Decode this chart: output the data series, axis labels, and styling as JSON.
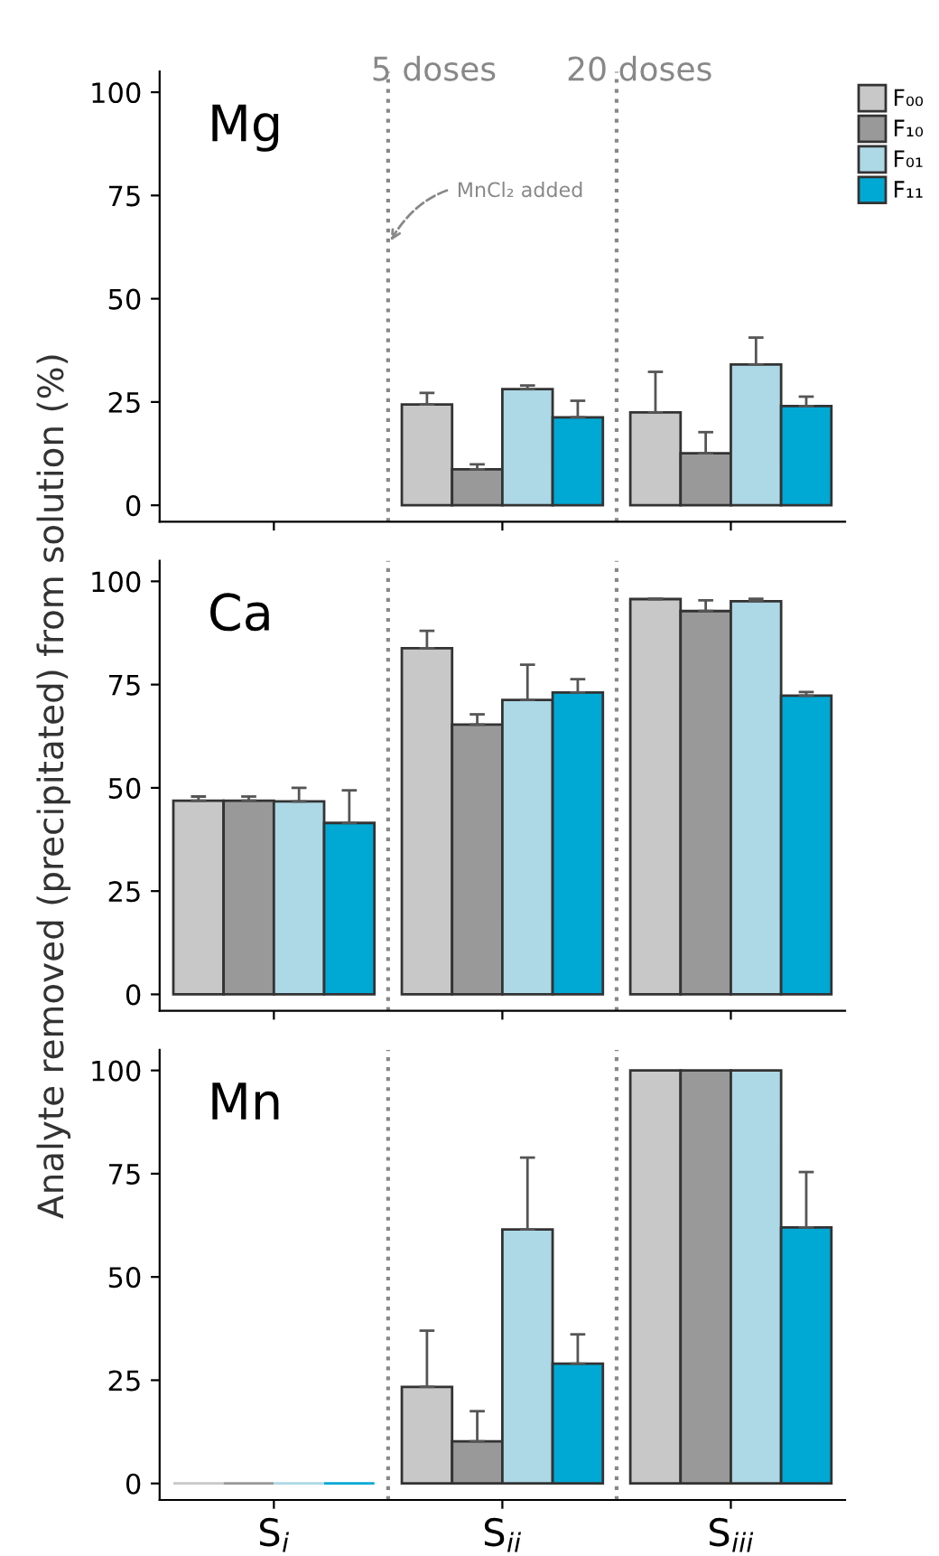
{
  "chart_data": [
    {
      "type": "bar",
      "title": "Mg",
      "categories": [
        null,
        null,
        null
      ],
      "ylim": [
        -4,
        105
      ],
      "yticks": [
        0,
        25,
        50,
        75,
        100
      ],
      "tick_labels": "y",
      "legend": "top right",
      "grid": false,
      "annotations": [
        "5 doses",
        "20 doses",
        "MnCl₂ added"
      ],
      "series": [
        {
          "name": "F₀₀",
          "color": "#c8c8c8",
          "values": [
            null,
            24.4,
            22.5
          ],
          "errors": [
            null,
            [
              24.4,
              27.2
            ],
            [
              22.5,
              32.3
            ]
          ]
        },
        {
          "name": "F₁₀",
          "color": "#999999",
          "values": [
            null,
            8.7,
            12.6
          ],
          "errors": [
            null,
            [
              8.7,
              9.9
            ],
            [
              12.6,
              17.7
            ]
          ]
        },
        {
          "name": "F₀₁",
          "color": "#add8e6",
          "values": [
            null,
            28.1,
            34.1
          ],
          "errors": [
            null,
            [
              28.1,
              29.0
            ],
            [
              34.1,
              40.6
            ]
          ]
        },
        {
          "name": "F₁₁",
          "color": "#00a8d4",
          "values": [
            null,
            21.3,
            24.0
          ],
          "errors": [
            null,
            [
              21.3,
              25.3
            ],
            [
              24.0,
              26.3
            ]
          ]
        }
      ]
    },
    {
      "type": "bar",
      "title": "Ca",
      "ylabel": "Analyte removed (precipitated) from solution (%)",
      "categories": [
        null,
        null,
        null
      ],
      "ylim": [
        -4,
        105
      ],
      "yticks": [
        0,
        25,
        50,
        75,
        100
      ],
      "tick_labels": "y",
      "grid": false,
      "series": [
        {
          "color": "#c8c8c8",
          "values": [
            46.9,
            83.8,
            95.7
          ],
          "errors": [
            [
              46.9,
              47.9
            ],
            [
              83.8,
              88.0
            ],
            [
              95.7,
              95.8
            ]
          ]
        },
        {
          "color": "#999999",
          "values": [
            46.9,
            65.3,
            92.8
          ],
          "errors": [
            [
              46.9,
              47.9
            ],
            [
              65.3,
              67.8
            ],
            [
              92.8,
              95.4
            ]
          ]
        },
        {
          "color": "#add8e6",
          "values": [
            46.7,
            71.3,
            95.2
          ],
          "errors": [
            [
              46.7,
              50.0
            ],
            [
              71.3,
              79.8
            ],
            [
              95.2,
              95.8
            ]
          ]
        },
        {
          "color": "#00a8d4",
          "values": [
            41.5,
            73.1,
            72.3
          ],
          "errors": [
            [
              41.5,
              49.4
            ],
            [
              73.1,
              76.3
            ],
            [
              72.3,
              73.2
            ]
          ]
        }
      ]
    },
    {
      "type": "bar",
      "title": "Mn",
      "categories": [
        "S$_{i}$",
        "S$_{ii}$",
        "S$_{iii}$"
      ],
      "ylim": [
        -4,
        105
      ],
      "yticks": [
        0,
        25,
        50,
        75,
        100
      ],
      "grid": false,
      "series": [
        {
          "color": "#c8c8c8",
          "values": [
            0,
            23.4,
            100
          ],
          "errors": [
            null,
            [
              23.4,
              37.0
            ],
            null
          ]
        },
        {
          "color": "#999999",
          "values": [
            0,
            10.2,
            100
          ],
          "errors": [
            null,
            [
              10.2,
              17.5
            ],
            null
          ]
        },
        {
          "color": "#add8e6",
          "values": [
            0,
            61.5,
            100
          ],
          "errors": [
            null,
            [
              61.5,
              78.9
            ],
            null
          ]
        },
        {
          "color": "#00a8d4",
          "values": [
            0,
            29.0,
            62.0
          ],
          "errors": [
            null,
            [
              29.0,
              36.1
            ],
            [
              62.0,
              75.4
            ]
          ]
        }
      ]
    }
  ]
}
